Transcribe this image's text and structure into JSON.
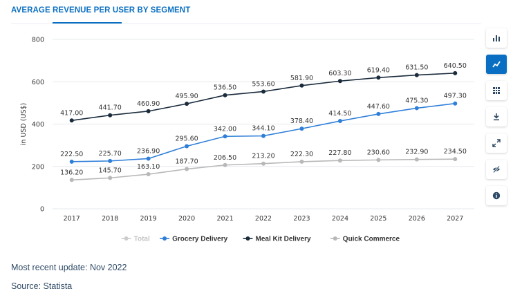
{
  "header": {
    "title": "AVERAGE REVENUE PER USER BY SEGMENT"
  },
  "toolbar": {
    "buttons": [
      {
        "icon": "bar-chart-icon",
        "active": false
      },
      {
        "icon": "line-chart-icon",
        "active": true
      },
      {
        "icon": "table-icon",
        "active": false
      },
      {
        "icon": "download-icon",
        "active": false
      },
      {
        "icon": "fullscreen-icon",
        "active": false
      },
      {
        "icon": "hide-icon",
        "active": false
      },
      {
        "icon": "info-icon",
        "active": false
      }
    ]
  },
  "footer": {
    "update": "Most recent update: Nov 2022",
    "source": "Source: Statista"
  },
  "colors": {
    "accent": "#0a6fc2",
    "total": "#c8c8c8",
    "grocery": "#2f7fd9",
    "mealkit": "#1a2b3c",
    "quick": "#b8b8b8"
  },
  "chart_data": {
    "type": "line",
    "title": "",
    "xlabel": "",
    "ylabel": "in USD (US$)",
    "ylim": [
      0,
      800
    ],
    "yticks": [
      "0",
      "200",
      "400",
      "600",
      "800"
    ],
    "ytick_values": [
      0,
      200,
      400,
      600,
      800
    ],
    "categories": [
      "2017",
      "2018",
      "2019",
      "2020",
      "2021",
      "2022",
      "2023",
      "2024",
      "2025",
      "2026",
      "2027"
    ],
    "grid": "horizontal",
    "legend_position": "bottom",
    "legend": [
      {
        "name": "Total",
        "color": "#c8c8c8",
        "hidden": true
      },
      {
        "name": "Grocery Delivery",
        "color": "#2f7fd9",
        "hidden": false
      },
      {
        "name": "Meal Kit Delivery",
        "color": "#1a2b3c",
        "hidden": false
      },
      {
        "name": "Quick Commerce",
        "color": "#b8b8b8",
        "hidden": false
      }
    ],
    "series": [
      {
        "name": "Meal Kit Delivery",
        "color": "#1a2b3c",
        "values": [
          417.0,
          441.7,
          460.9,
          495.9,
          536.5,
          553.6,
          581.9,
          603.3,
          619.4,
          631.5,
          640.5
        ],
        "labels": [
          "417.00",
          "441.70",
          "460.90",
          "495.90",
          "536.50",
          "553.60",
          "581.90",
          "603.30",
          "619.40",
          "631.50",
          "640.50"
        ],
        "label_pos": "above"
      },
      {
        "name": "Grocery Delivery",
        "color": "#2f7fd9",
        "values": [
          222.5,
          225.7,
          236.9,
          295.6,
          342.0,
          344.1,
          378.4,
          414.5,
          447.6,
          475.3,
          497.3
        ],
        "labels": [
          "222.50",
          "225.70",
          "236.90",
          "295.60",
          "342.00",
          "344.10",
          "378.40",
          "414.50",
          "447.60",
          "475.30",
          "497.30"
        ],
        "label_pos": "above"
      },
      {
        "name": "Quick Commerce",
        "color": "#b8b8b8",
        "values": [
          136.2,
          145.7,
          163.1,
          187.7,
          206.5,
          213.2,
          222.3,
          227.8,
          230.6,
          232.9,
          234.5
        ],
        "labels": [
          "136.20",
          "145.70",
          "163.10",
          "187.70",
          "206.50",
          "213.20",
          "222.30",
          "227.80",
          "230.60",
          "232.90",
          "234.50"
        ],
        "label_pos": "above"
      }
    ]
  }
}
